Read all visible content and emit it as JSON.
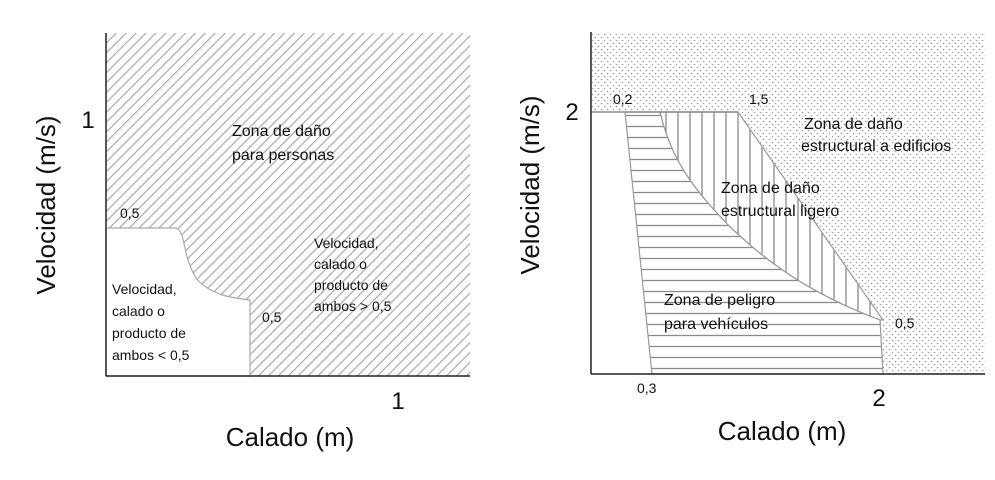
{
  "left_diagram": {
    "y_axis_label": "Velocidad (m/s)",
    "x_axis_label": "Calado (m)",
    "y_tick": "1",
    "x_tick": "1",
    "value_label_y": "0,5",
    "value_label_x": "0,5",
    "zone_persons": [
      "Zona de daño",
      "para personas"
    ],
    "zone_above": [
      "Velocidad,",
      "calado o",
      "producto de",
      "ambos > 0,5"
    ],
    "zone_below": [
      "Velocidad,",
      "calado o",
      "producto de",
      "ambos < 0,5"
    ]
  },
  "right_diagram": {
    "y_axis_label": "Velocidad (m/s)",
    "x_axis_label": "Calado (m)",
    "y_tick": "2",
    "x_tick": "2",
    "label_top_left": "0,2",
    "label_top_right": "1,5",
    "label_right": "0,5",
    "label_bottom": "0,3",
    "zone_buildings": [
      "Zona de daño",
      "estructural a edificios"
    ],
    "zone_light": [
      "Zona de daño",
      "estructural ligero"
    ],
    "zone_vehicles": [
      "Zona de peligro",
      "para vehículos"
    ]
  }
}
